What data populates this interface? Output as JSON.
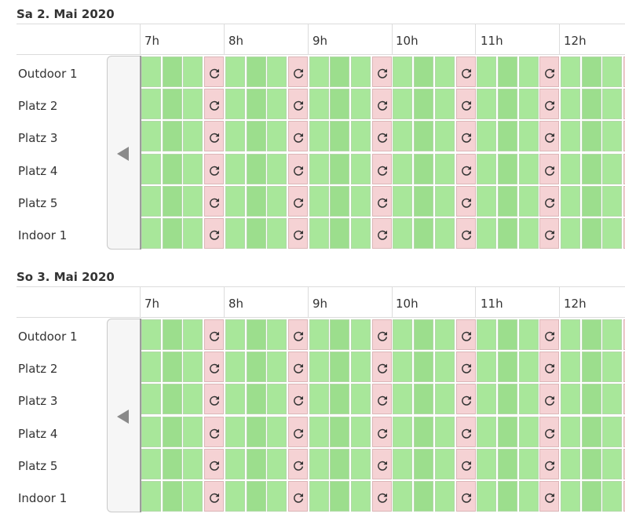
{
  "days": [
    {
      "title": "Sa 2. Mai 2020",
      "hours": [
        "7h",
        "8h",
        "9h",
        "10h",
        "11h",
        "12h"
      ],
      "courts": [
        "Outdoor 1",
        "Platz 2",
        "Platz 3",
        "Platz 4",
        "Platz 5",
        "Indoor 1"
      ]
    },
    {
      "title": "So 3. Mai 2020",
      "hours": [
        "7h",
        "8h",
        "9h",
        "10h",
        "11h",
        "12h"
      ],
      "courts": [
        "Outdoor 1",
        "Platz 2",
        "Platz 3",
        "Platz 4",
        "Platz 5",
        "Indoor 1"
      ]
    }
  ],
  "slot_status": [
    "free",
    "free",
    "free",
    "booked"
  ],
  "icons": {
    "prev": "triangle-left-icon",
    "booked": "refresh-icon"
  },
  "colors": {
    "free": "#a8e79a",
    "free_alt": "#9cde8d",
    "booked": "#f5d2d4",
    "icon": "#333333"
  }
}
